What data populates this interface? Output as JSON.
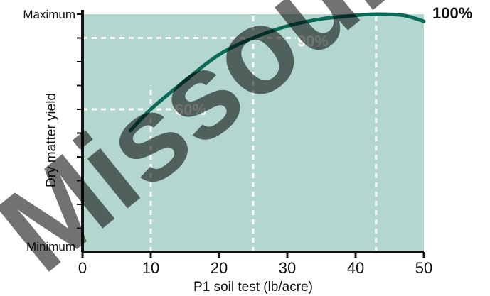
{
  "chart_data": {
    "type": "line",
    "title": "",
    "xlabel": "P1 soil test (lb/acre)",
    "ylabel": "Dry matter yield",
    "xlim": [
      0,
      50
    ],
    "ylim": [
      0,
      100
    ],
    "x_ticks": [
      0,
      10,
      20,
      30,
      40,
      50
    ],
    "y_min_label": "Minimum",
    "y_max_label": "Maximum",
    "series": [
      {
        "x": [
          7,
          10,
          15,
          20,
          25,
          30,
          35,
          40,
          43,
          47,
          50
        ],
        "y": [
          51,
          60,
          72,
          83,
          90,
          95,
          98,
          99.5,
          100,
          99.5,
          97
        ]
      }
    ],
    "reference_lines": [
      {
        "label": "60%",
        "x": 10,
        "y": 60
      },
      {
        "label": "90%",
        "x": 25,
        "y": 90
      },
      {
        "label": "100%",
        "x": 43,
        "y": 100
      }
    ],
    "colors": {
      "plot_background": "#b3d7cf",
      "curve": "#0b6a58",
      "reference": "#ffffff"
    },
    "grid": false
  },
  "watermark": {
    "text": "Missouri",
    "color": "#000000"
  }
}
